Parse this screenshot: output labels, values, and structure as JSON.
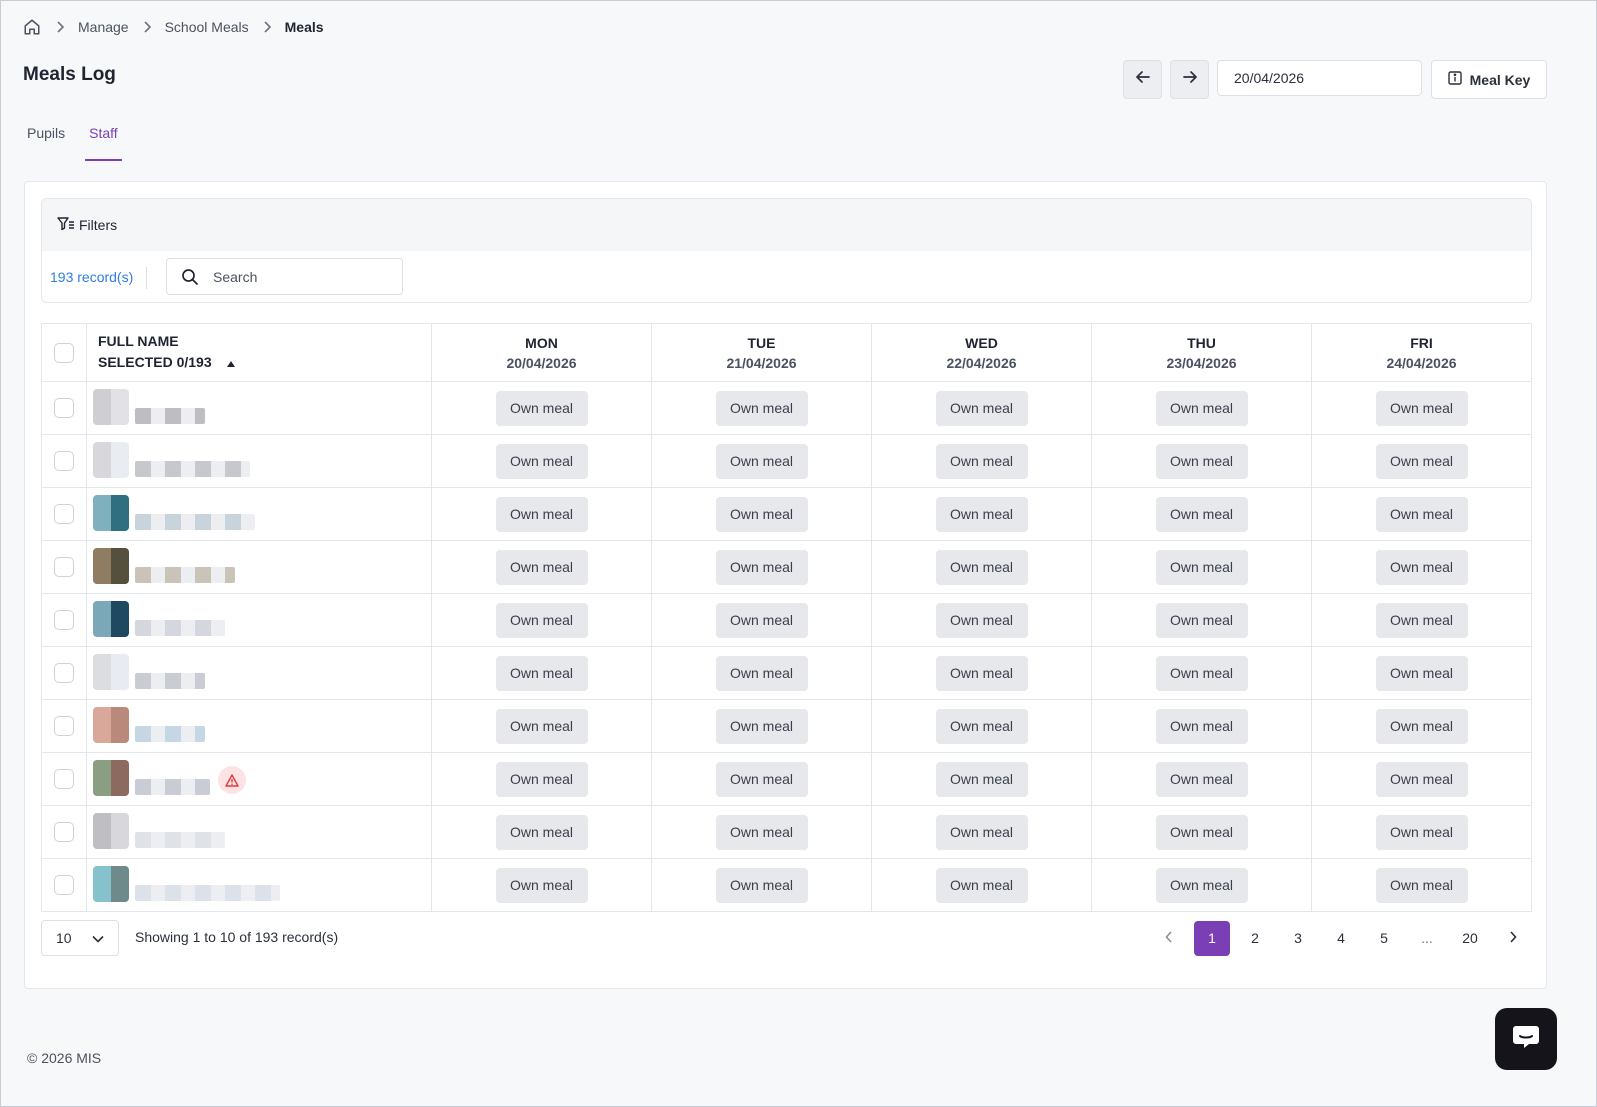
{
  "breadcrumb": {
    "items": [
      {
        "label": "Manage"
      },
      {
        "label": "School Meals"
      },
      {
        "label": "Meals"
      }
    ]
  },
  "page": {
    "title": "Meals Log",
    "date_value": "20/04/2026",
    "meal_key_label": "Meal Key"
  },
  "tabs": [
    {
      "label": "Pupils",
      "active": false
    },
    {
      "label": "Staff",
      "active": true
    }
  ],
  "filters": {
    "label": "Filters",
    "records": "193 record(s)",
    "search_placeholder": "Search"
  },
  "table": {
    "name_header_line1": "FULL NAME",
    "name_header_line2": "SELECTED 0/193",
    "days": [
      {
        "day": "MON",
        "date": "20/04/2026"
      },
      {
        "day": "TUE",
        "date": "21/04/2026"
      },
      {
        "day": "WED",
        "date": "22/04/2026"
      },
      {
        "day": "THU",
        "date": "23/04/2026"
      },
      {
        "day": "FRI",
        "date": "24/04/2026"
      }
    ],
    "meal_label": "Own meal",
    "row_count": 10,
    "rows_with_alert": [
      7
    ]
  },
  "pagination": {
    "page_size": "10",
    "showing": "Showing 1 to 10 of 193 record(s)",
    "pages": [
      "1",
      "2",
      "3",
      "4",
      "5",
      "...",
      "20"
    ],
    "current": "1"
  },
  "footer": {
    "copyright": "© 2026 MIS"
  },
  "colors": {
    "accent": "#7a3fb5",
    "link": "#2f7de1",
    "badge_bg": "#e7e8eb",
    "alert": "#d93b3b"
  }
}
